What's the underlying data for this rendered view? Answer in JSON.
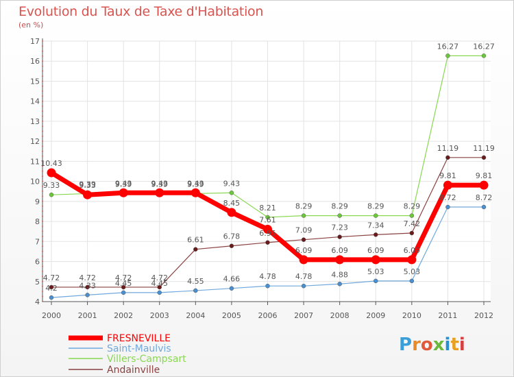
{
  "chart_data": {
    "type": "line",
    "title": "Evolution du Taux de Taxe d'Habitation",
    "subtitle": "(en %)",
    "x": [
      "2000",
      "2001",
      "2002",
      "2003",
      "2004",
      "2005",
      "2006",
      "2007",
      "2008",
      "2009",
      "2010",
      "2011",
      "2012"
    ],
    "ylim": [
      4,
      17
    ],
    "yticks": [
      4,
      5,
      6,
      7,
      8,
      9,
      10,
      11,
      12,
      13,
      14,
      15,
      16,
      17
    ],
    "grid": true,
    "legend_position": "bottom-left",
    "series": [
      {
        "name": "FRESNEVILLE",
        "color": "#ff0000",
        "values": [
          10.43,
          9.33,
          9.43,
          9.43,
          9.43,
          8.45,
          7.61,
          6.09,
          6.09,
          6.09,
          6.09,
          9.81,
          9.81
        ],
        "labels": [
          "10.43",
          "9.33",
          "9.43",
          "9.43",
          "9.43",
          "8.45",
          "7.61",
          "6.09",
          "6.09",
          "6.09",
          "6.09",
          "9.81",
          "9.81"
        ]
      },
      {
        "name": "Saint-Maulvis",
        "color": "#6fa8dc",
        "values": [
          4.2,
          4.33,
          4.45,
          4.45,
          4.55,
          4.66,
          4.78,
          4.78,
          4.88,
          5.03,
          5.03,
          8.72,
          8.72
        ],
        "labels": [
          "4.2",
          "4.33",
          "4.45",
          "4.45",
          "4.55",
          "4.66",
          "4.78",
          "4.78",
          "4.88",
          "5.03",
          "5.03",
          "8.72",
          "8.72"
        ]
      },
      {
        "name": "Villers-Campsart",
        "color": "#88d850",
        "values": [
          9.33,
          9.39,
          9.39,
          9.39,
          9.39,
          9.43,
          8.21,
          8.29,
          8.29,
          8.29,
          8.29,
          16.27,
          16.27
        ],
        "labels": [
          "9.33",
          "9.39",
          "9.39",
          "9.39",
          "9.39",
          "9.43",
          "8.21",
          "8.29",
          "8.29",
          "8.29",
          "8.29",
          "16.27",
          "16.27"
        ]
      },
      {
        "name": "Andainville",
        "color": "#7a2e2e",
        "values": [
          4.72,
          4.72,
          4.72,
          4.72,
          6.61,
          6.78,
          6.95,
          7.09,
          7.23,
          7.34,
          7.42,
          11.19,
          11.19
        ],
        "labels": [
          "4.72",
          "4.72",
          "4.72",
          "4.72",
          "6.61",
          "6.78",
          "6.95",
          "7.09",
          "7.23",
          "7.34",
          "7.42",
          "11.19",
          "11.19"
        ]
      }
    ]
  },
  "logo": {
    "text": "Proxiti"
  }
}
